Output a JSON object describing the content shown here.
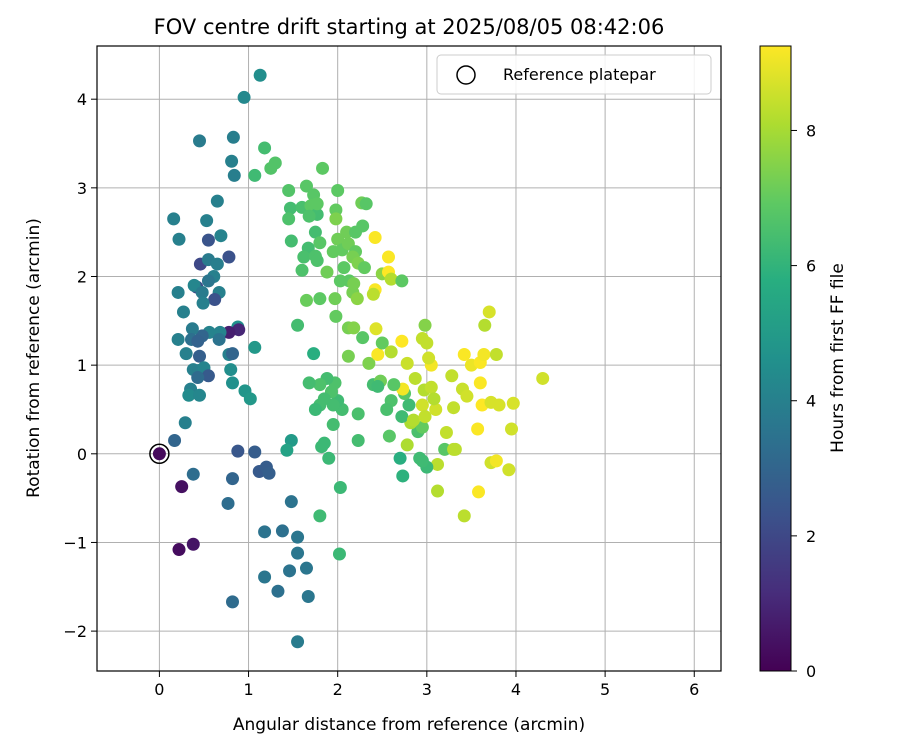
{
  "chart_data": {
    "type": "scatter",
    "title": "FOV centre drift starting at 2025/08/05 08:42:06",
    "xlabel": "Angular distance from reference (arcmin)",
    "ylabel": "Rotation from reference (arcmin)",
    "xlim": [
      -0.7,
      6.3
    ],
    "ylim": [
      -2.45,
      4.6
    ],
    "xticks": [
      0,
      1,
      2,
      3,
      4,
      5,
      6
    ],
    "yticks": [
      -2,
      -1,
      0,
      1,
      2,
      3,
      4
    ],
    "grid": true,
    "legend": {
      "placement": "top-right",
      "entries": [
        "Reference platepar"
      ]
    },
    "reference_point": {
      "x": 0,
      "y": 0
    },
    "colorbar": {
      "label": "Hours from first FF file",
      "colormap": "viridis",
      "range": [
        0,
        9.25
      ],
      "ticks": [
        0,
        2,
        4,
        6,
        8
      ]
    },
    "series": [
      {
        "columns": [
          "x",
          "y",
          "hours"
        ],
        "points": [
          [
            0.25,
            -0.37,
            0.4
          ],
          [
            0.22,
            -1.08,
            0.3
          ],
          [
            0.38,
            -1.02,
            0.5
          ],
          [
            0.0,
            0.0,
            0.2
          ],
          [
            0.17,
            0.15,
            3.0
          ],
          [
            0.38,
            -0.23,
            3.3
          ],
          [
            0.82,
            -0.28,
            3.0
          ],
          [
            0.88,
            0.03,
            2.5
          ],
          [
            1.07,
            0.02,
            2.7
          ],
          [
            1.12,
            -0.2,
            2.6
          ],
          [
            1.2,
            -0.15,
            2.7
          ],
          [
            1.23,
            -0.22,
            2.8
          ],
          [
            0.77,
            -0.56,
            3.3
          ],
          [
            0.82,
            -1.67,
            3.2
          ],
          [
            1.18,
            -0.88,
            3.5
          ],
          [
            1.38,
            -0.87,
            3.4
          ],
          [
            1.48,
            -0.54,
            3.5
          ],
          [
            1.55,
            -0.94,
            3.6
          ],
          [
            1.55,
            -1.12,
            3.6
          ],
          [
            1.18,
            -1.39,
            3.6
          ],
          [
            1.46,
            -1.32,
            3.5
          ],
          [
            1.65,
            -1.29,
            3.6
          ],
          [
            1.67,
            -1.61,
            3.6
          ],
          [
            1.33,
            -1.55,
            3.4
          ],
          [
            1.55,
            -2.12,
            3.8
          ],
          [
            0.45,
            3.53,
            3.8
          ],
          [
            0.83,
            3.57,
            3.9
          ],
          [
            0.81,
            3.3,
            4.0
          ],
          [
            0.84,
            3.14,
            3.9
          ],
          [
            0.16,
            2.65,
            4.0
          ],
          [
            0.22,
            2.42,
            4.0
          ],
          [
            0.65,
            2.85,
            4.0
          ],
          [
            0.53,
            2.63,
            4.0
          ],
          [
            0.69,
            2.46,
            4.1
          ],
          [
            0.55,
            2.41,
            2.4
          ],
          [
            0.46,
            2.14,
            2.0
          ],
          [
            0.78,
            2.22,
            2.3
          ],
          [
            0.55,
            2.19,
            3.8
          ],
          [
            0.65,
            2.14,
            3.9
          ],
          [
            0.61,
            2.0,
            4.0
          ],
          [
            0.55,
            1.95,
            3.6
          ],
          [
            0.42,
            1.88,
            2.2
          ],
          [
            0.39,
            1.9,
            4.2
          ],
          [
            0.48,
            1.82,
            3.8
          ],
          [
            0.21,
            1.82,
            4.0
          ],
          [
            0.67,
            1.82,
            4.0
          ],
          [
            0.62,
            1.74,
            2.3
          ],
          [
            0.49,
            1.7,
            4.0
          ],
          [
            0.27,
            1.6,
            4.0
          ],
          [
            0.88,
            1.43,
            4.6
          ],
          [
            0.89,
            1.4,
            1.0
          ],
          [
            0.78,
            1.37,
            0.8
          ],
          [
            0.68,
            1.37,
            4.1
          ],
          [
            0.56,
            1.37,
            4.1
          ],
          [
            0.48,
            1.33,
            3.0
          ],
          [
            0.37,
            1.41,
            3.8
          ],
          [
            0.21,
            1.29,
            4.0
          ],
          [
            0.36,
            1.29,
            3.4
          ],
          [
            0.43,
            1.27,
            2.9
          ],
          [
            0.67,
            1.29,
            3.5
          ],
          [
            0.3,
            1.13,
            4.0
          ],
          [
            0.45,
            1.1,
            2.8
          ],
          [
            0.78,
            1.12,
            4.0
          ],
          [
            0.82,
            1.13,
            3.0
          ],
          [
            1.07,
            1.2,
            4.9
          ],
          [
            0.38,
            0.95,
            4.0
          ],
          [
            0.44,
            0.94,
            3.9
          ],
          [
            0.5,
            0.97,
            4.1
          ],
          [
            0.55,
            0.88,
            2.6
          ],
          [
            0.43,
            0.86,
            3.2
          ],
          [
            0.8,
            0.95,
            4.5
          ],
          [
            0.82,
            0.8,
            4.6
          ],
          [
            0.35,
            0.73,
            4.0
          ],
          [
            0.33,
            0.66,
            4.4
          ],
          [
            0.45,
            0.66,
            4.2
          ],
          [
            0.29,
            0.35,
            4.0
          ],
          [
            0.96,
            0.71,
            4.8
          ],
          [
            1.02,
            0.62,
            4.9
          ],
          [
            0.95,
            4.02,
            4.3
          ],
          [
            1.13,
            4.27,
            4.5
          ],
          [
            1.18,
            3.45,
            6.4
          ],
          [
            1.07,
            3.14,
            6.3
          ],
          [
            1.3,
            3.28,
            6.7
          ],
          [
            1.25,
            3.22,
            6.7
          ],
          [
            1.45,
            2.97,
            6.7
          ],
          [
            1.47,
            2.77,
            6.4
          ],
          [
            1.45,
            2.65,
            6.6
          ],
          [
            1.48,
            2.4,
            6.4
          ],
          [
            1.6,
            2.78,
            6.5
          ],
          [
            1.65,
            3.02,
            6.8
          ],
          [
            1.73,
            2.92,
            6.8
          ],
          [
            1.83,
            3.22,
            6.9
          ],
          [
            1.7,
            2.8,
            6.9
          ],
          [
            1.77,
            2.7,
            6.4
          ],
          [
            1.77,
            2.82,
            6.9
          ],
          [
            1.68,
            2.68,
            6.6
          ],
          [
            1.75,
            2.5,
            6.4
          ],
          [
            1.67,
            2.32,
            6.4
          ],
          [
            1.62,
            2.22,
            6.5
          ],
          [
            1.6,
            2.07,
            6.6
          ],
          [
            1.75,
            2.23,
            6.6
          ],
          [
            1.8,
            2.38,
            6.8
          ],
          [
            1.77,
            2.18,
            6.6
          ],
          [
            1.88,
            2.05,
            7.2
          ],
          [
            1.95,
            2.28,
            7.0
          ],
          [
            1.98,
            2.75,
            7.0
          ],
          [
            1.98,
            2.65,
            7.4
          ],
          [
            2.0,
            2.97,
            6.9
          ],
          [
            2.1,
            2.5,
            7.2
          ],
          [
            2.0,
            2.42,
            7.2
          ],
          [
            2.05,
            2.3,
            7.0
          ],
          [
            2.12,
            2.37,
            7.2
          ],
          [
            2.2,
            2.5,
            6.8
          ],
          [
            2.27,
            2.83,
            7.2
          ],
          [
            2.32,
            2.82,
            6.8
          ],
          [
            2.28,
            2.57,
            6.8
          ],
          [
            2.2,
            2.28,
            7.0
          ],
          [
            2.17,
            2.22,
            7.3
          ],
          [
            2.23,
            2.15,
            7.4
          ],
          [
            2.07,
            2.1,
            6.9
          ],
          [
            2.03,
            1.95,
            6.9
          ],
          [
            2.13,
            1.95,
            6.9
          ],
          [
            2.17,
            1.82,
            7.3
          ],
          [
            2.22,
            1.75,
            7.6
          ],
          [
            2.18,
            1.92,
            7.3
          ],
          [
            2.3,
            2.1,
            7.0
          ],
          [
            2.42,
            2.44,
            9.2
          ],
          [
            2.42,
            1.85,
            9.2
          ],
          [
            2.4,
            1.8,
            8.3
          ],
          [
            2.5,
            2.03,
            7.6
          ],
          [
            2.57,
            2.22,
            9.2
          ],
          [
            2.57,
            2.05,
            9.3
          ],
          [
            2.6,
            1.97,
            8.2
          ],
          [
            2.72,
            1.95,
            6.9
          ],
          [
            1.97,
            1.75,
            7.2
          ],
          [
            1.8,
            1.75,
            6.9
          ],
          [
            1.65,
            1.73,
            7.1
          ],
          [
            1.98,
            1.55,
            7.0
          ],
          [
            1.55,
            1.45,
            6.4
          ],
          [
            1.73,
            1.13,
            5.8
          ],
          [
            2.12,
            1.42,
            7.3
          ],
          [
            2.18,
            1.42,
            7.5
          ],
          [
            2.43,
            1.41,
            8.8
          ],
          [
            2.28,
            1.31,
            6.8
          ],
          [
            2.12,
            1.1,
            7.3
          ],
          [
            2.35,
            1.02,
            7.4
          ],
          [
            2.45,
            1.12,
            9.2
          ],
          [
            2.5,
            1.25,
            7.0
          ],
          [
            2.6,
            1.15,
            8.2
          ],
          [
            2.72,
            1.27,
            9.3
          ],
          [
            2.78,
            1.02,
            8.5
          ],
          [
            2.95,
            1.3,
            8.4
          ],
          [
            2.98,
            1.45,
            7.5
          ],
          [
            3.0,
            1.25,
            8.4
          ],
          [
            2.87,
            0.85,
            8.3
          ],
          [
            2.97,
            0.72,
            8.2
          ],
          [
            3.05,
            1.0,
            9.1
          ],
          [
            3.02,
            1.08,
            8.6
          ],
          [
            3.05,
            0.75,
            8.4
          ],
          [
            2.95,
            0.55,
            8.6
          ],
          [
            3.1,
            0.5,
            8.6
          ],
          [
            3.28,
            0.88,
            8.4
          ],
          [
            3.3,
            0.52,
            8.4
          ],
          [
            3.4,
            0.73,
            8.5
          ],
          [
            3.45,
            0.65,
            8.6
          ],
          [
            3.42,
            1.12,
            9.2
          ],
          [
            3.5,
            1.0,
            9.0
          ],
          [
            3.6,
            1.03,
            9.2
          ],
          [
            3.64,
            1.12,
            9.1
          ],
          [
            3.6,
            0.8,
            9.2
          ],
          [
            3.62,
            0.55,
            9.3
          ],
          [
            3.65,
            1.45,
            8.2
          ],
          [
            3.7,
            1.6,
            8.7
          ],
          [
            3.78,
            1.12,
            8.4
          ],
          [
            3.72,
            0.58,
            8.7
          ],
          [
            3.81,
            0.55,
            8.7
          ],
          [
            3.97,
            0.57,
            8.7
          ],
          [
            4.3,
            0.85,
            8.6
          ],
          [
            3.57,
            0.28,
            9.2
          ],
          [
            3.95,
            0.28,
            8.6
          ],
          [
            3.72,
            -0.1,
            8.6
          ],
          [
            3.78,
            -0.08,
            9.1
          ],
          [
            3.92,
            -0.18,
            8.6
          ],
          [
            3.58,
            -0.43,
            9.2
          ],
          [
            3.42,
            -0.7,
            8.3
          ],
          [
            3.12,
            -0.42,
            8.2
          ],
          [
            3.12,
            -0.12,
            8.3
          ],
          [
            3.2,
            0.05,
            6.8
          ],
          [
            3.32,
            0.05,
            8.3
          ],
          [
            3.22,
            0.24,
            8.4
          ],
          [
            3.0,
            -0.15,
            6.2
          ],
          [
            2.92,
            -0.05,
            6.3
          ],
          [
            2.9,
            0.25,
            6.5
          ],
          [
            2.95,
            0.3,
            7.0
          ],
          [
            2.82,
            0.35,
            8.1
          ],
          [
            2.72,
            0.42,
            6.3
          ],
          [
            2.8,
            0.55,
            6.3
          ],
          [
            2.75,
            0.68,
            6.8
          ],
          [
            2.73,
            0.73,
            9.1
          ],
          [
            2.63,
            0.78,
            6.8
          ],
          [
            2.6,
            0.6,
            6.6
          ],
          [
            2.55,
            0.5,
            6.5
          ],
          [
            2.58,
            0.2,
            6.8
          ],
          [
            2.4,
            0.78,
            6.4
          ],
          [
            2.23,
            0.45,
            6.5
          ],
          [
            2.23,
            0.15,
            6.4
          ],
          [
            2.05,
            0.5,
            6.4
          ],
          [
            2.0,
            0.6,
            6.3
          ],
          [
            1.97,
            0.8,
            6.6
          ],
          [
            1.93,
            0.7,
            6.6
          ],
          [
            1.95,
            0.55,
            6.4
          ],
          [
            1.88,
            0.85,
            6.4
          ],
          [
            1.8,
            0.78,
            6.6
          ],
          [
            1.8,
            0.55,
            6.4
          ],
          [
            1.85,
            0.62,
            6.4
          ],
          [
            1.75,
            0.5,
            6.2
          ],
          [
            1.68,
            0.8,
            6.4
          ],
          [
            1.82,
            0.08,
            6.2
          ],
          [
            1.85,
            0.12,
            6.2
          ],
          [
            1.9,
            -0.05,
            6.2
          ],
          [
            1.95,
            0.33,
            6.4
          ],
          [
            2.03,
            -0.38,
            6.2
          ],
          [
            2.02,
            -1.13,
            6.2
          ],
          [
            1.8,
            -0.7,
            6.3
          ],
          [
            1.48,
            0.15,
            5.0
          ],
          [
            1.43,
            0.04,
            5.3
          ],
          [
            2.7,
            -0.05,
            5.8
          ],
          [
            2.73,
            -0.25,
            5.9
          ],
          [
            2.78,
            0.1,
            8.1
          ],
          [
            2.95,
            -0.08,
            6.3
          ],
          [
            3.3,
            0.05,
            8.3
          ],
          [
            2.85,
            0.38,
            8.2
          ],
          [
            2.48,
            0.82,
            7.2
          ],
          [
            2.45,
            0.76,
            6.3
          ],
          [
            2.98,
            0.42,
            8.4
          ],
          [
            3.08,
            0.62,
            8.2
          ]
        ]
      }
    ]
  }
}
